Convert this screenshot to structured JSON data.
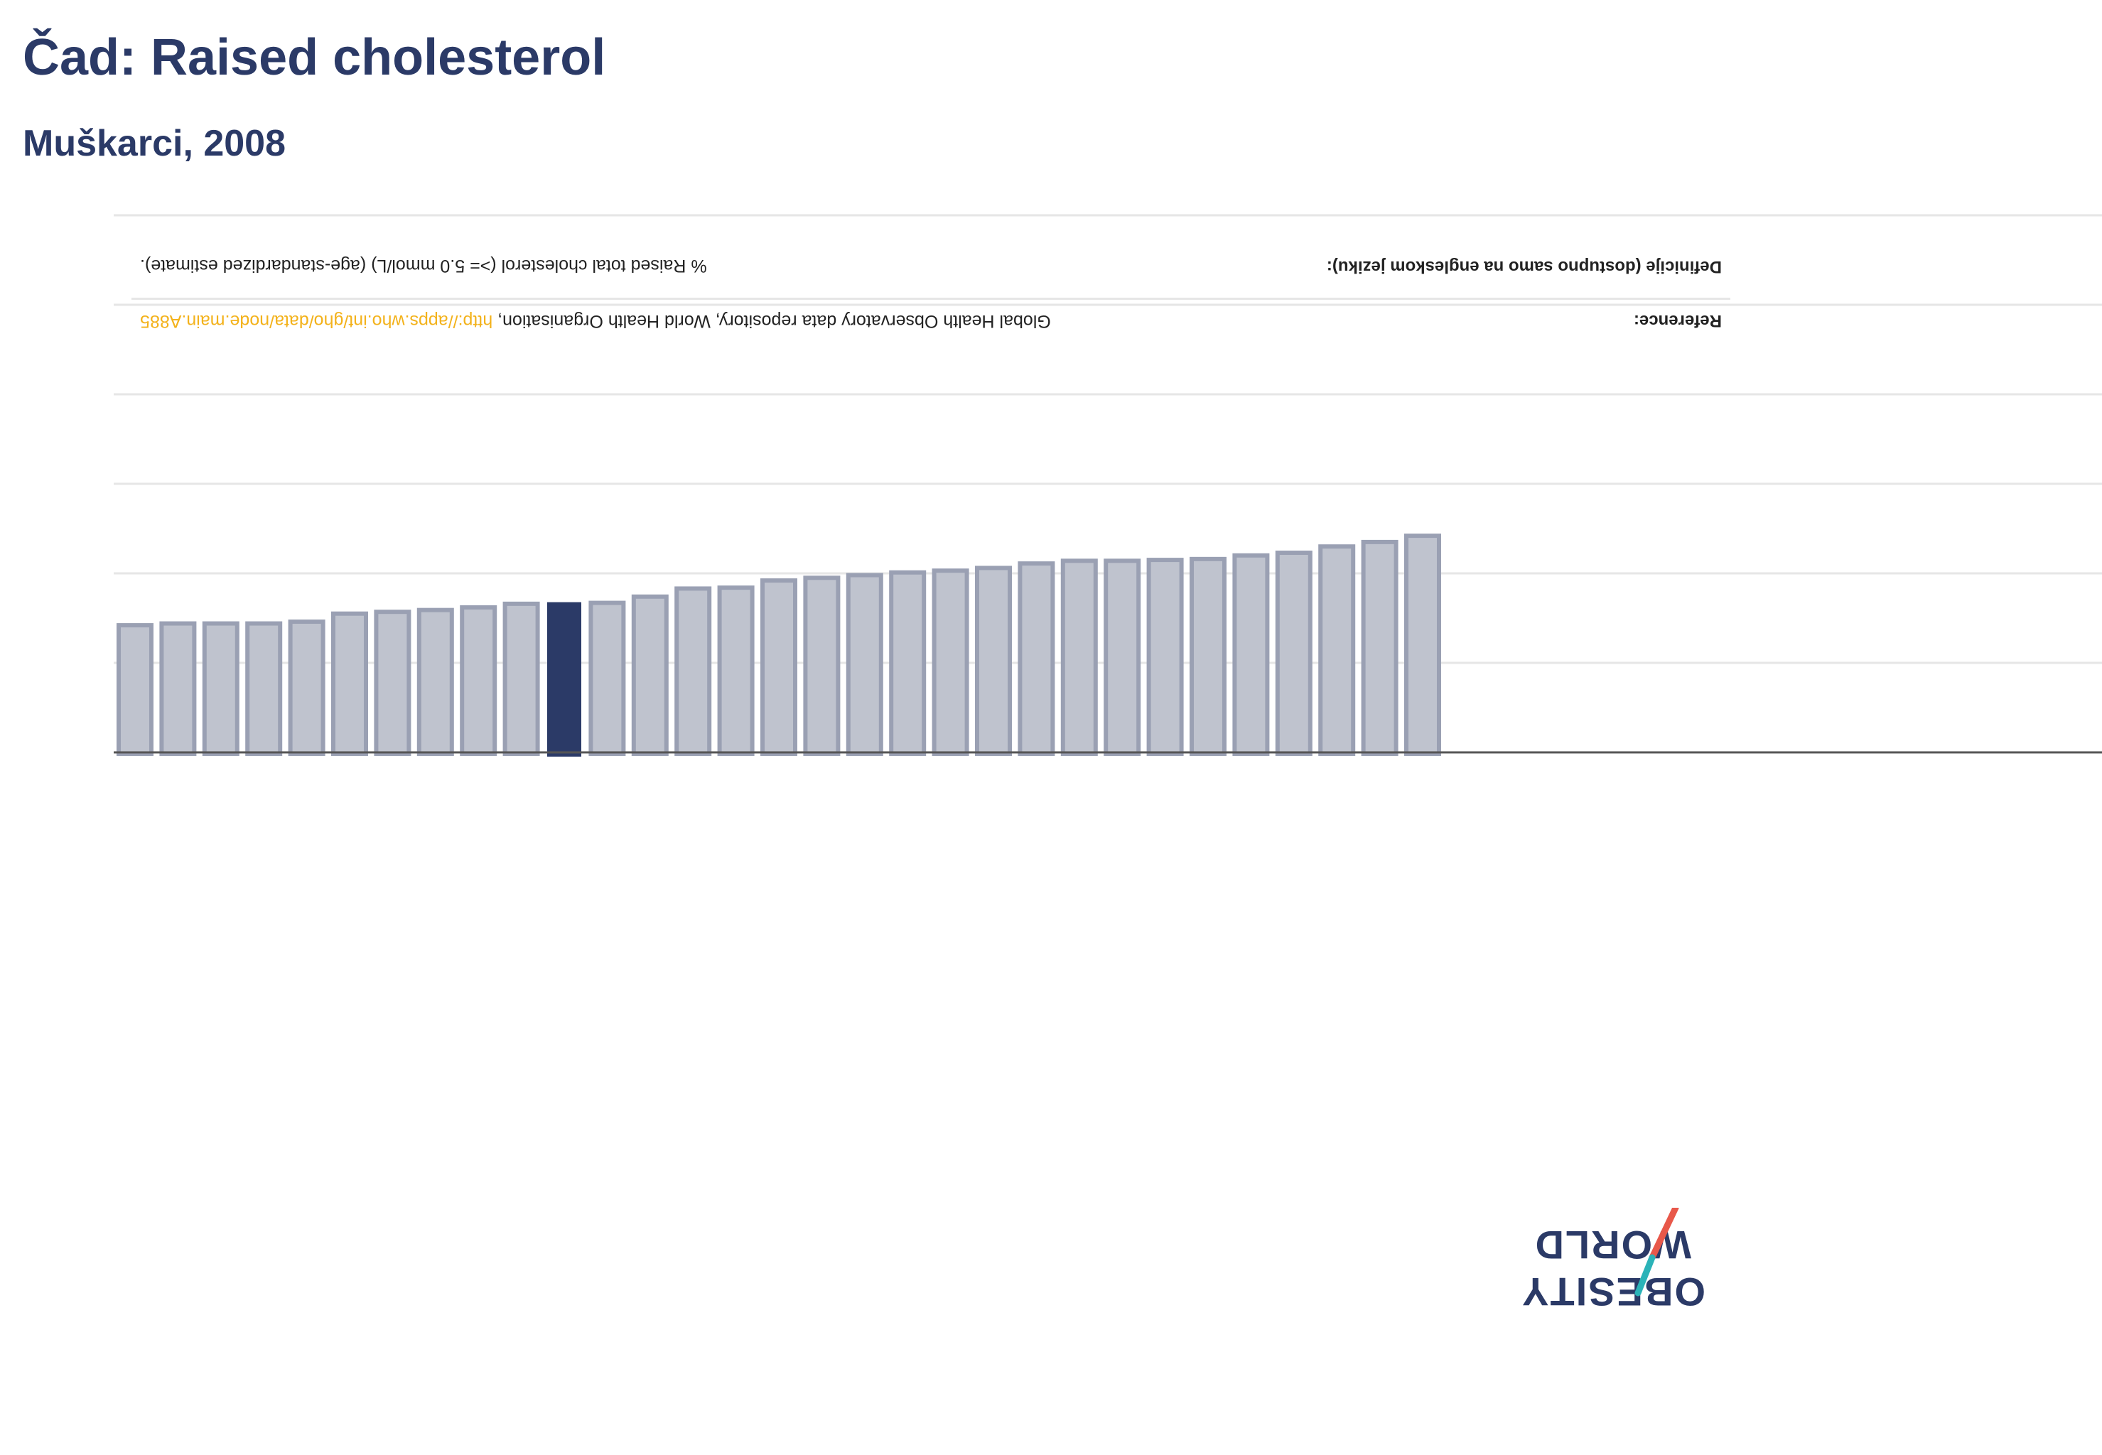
{
  "title": "Čad: Raised cholesterol",
  "subtitle": "Muškarci, 2008",
  "info": {
    "reference_label": "Reference:",
    "reference_text": "Global Health Observatory data repository, World Health Organisation, ",
    "reference_link": "http://apps.who.int/gho/data/node.main.A885",
    "definition_label": "Definicije (dostupno samo na engleskom jeziku):",
    "definition_text": "% Raised total cholesterol (>= 5.0 mmol/L) (age-standardized estimate)."
  },
  "logo": {
    "line1": "OBESITY",
    "line2": "WORLD"
  },
  "colors": {
    "title": "#2b3a67",
    "highlight_bar": "#2b3a67",
    "bar_fill": "#bfc3ce",
    "bar_stroke": "#9aa0b3",
    "grid": "#e6e6e6",
    "axis": "#555555",
    "link": "#f3b21b",
    "logo_red": "#e8584a",
    "logo_teal": "#2bb3b8"
  },
  "chart_data": {
    "type": "bar",
    "title": "Čad: Raised cholesterol",
    "subtitle": "Muškarci, 2008",
    "xlabel": "",
    "ylabel": "",
    "grid": true,
    "highlight_index": 10,
    "ylim": [
      0,
      60
    ],
    "values": [
      14.2,
      14.4,
      14.4,
      14.4,
      14.6,
      15.5,
      15.7,
      15.9,
      16.2,
      16.6,
      16.7,
      16.7,
      17.4,
      18.3,
      18.4,
      19.2,
      19.5,
      19.8,
      20.1,
      20.3,
      20.6,
      21.1,
      21.4,
      21.4,
      21.5,
      21.6,
      22.0,
      22.3,
      23.0,
      23.5,
      24.2
    ]
  }
}
